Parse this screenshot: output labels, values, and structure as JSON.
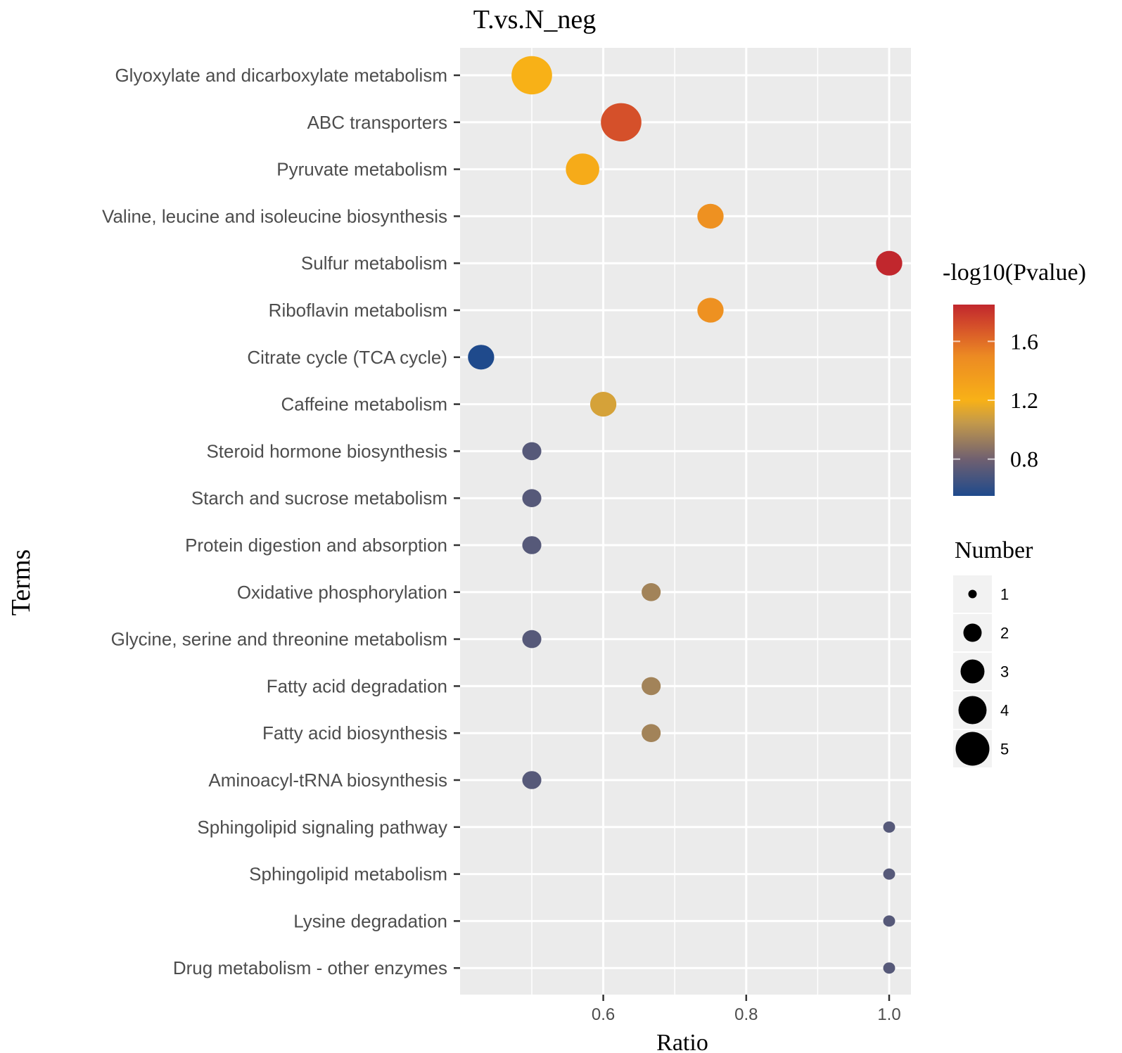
{
  "chart_data": {
    "type": "scatter",
    "title": "T.vs.N_neg",
    "xlabel": "Ratio",
    "ylabel": "Terms",
    "xlim": [
      0.42,
      1.03
    ],
    "xticks": [
      {
        "value": 0.6,
        "label": "0.6"
      },
      {
        "value": 0.8,
        "label": "0.8"
      },
      {
        "value": 1.0,
        "label": "1.0"
      }
    ],
    "x_minor_gridlines": [
      0.5,
      0.7,
      0.9
    ],
    "points": [
      {
        "term": "Glyoxylate and dicarboxylate metabolism",
        "ratio": 0.5,
        "number": 5,
        "neg_log10_p": 1.2
      },
      {
        "term": "ABC transporters",
        "ratio": 0.625,
        "number": 5,
        "neg_log10_p": 1.7
      },
      {
        "term": "Pyruvate metabolism",
        "ratio": 0.571,
        "number": 4,
        "neg_log10_p": 1.25
      },
      {
        "term": "Valine, leucine and isoleucine biosynthesis",
        "ratio": 0.75,
        "number": 3,
        "neg_log10_p": 1.45
      },
      {
        "term": "Sulfur metabolism",
        "ratio": 1.0,
        "number": 3,
        "neg_log10_p": 1.85
      },
      {
        "term": "Riboflavin metabolism",
        "ratio": 0.75,
        "number": 3,
        "neg_log10_p": 1.45
      },
      {
        "term": "Citrate cycle (TCA cycle)",
        "ratio": 0.429,
        "number": 3,
        "neg_log10_p": 0.55
      },
      {
        "term": "Caffeine metabolism",
        "ratio": 0.6,
        "number": 3,
        "neg_log10_p": 1.1
      },
      {
        "term": "Steroid hormone biosynthesis",
        "ratio": 0.5,
        "number": 2,
        "neg_log10_p": 0.72
      },
      {
        "term": "Starch and sucrose metabolism",
        "ratio": 0.5,
        "number": 2,
        "neg_log10_p": 0.72
      },
      {
        "term": "Protein digestion and absorption",
        "ratio": 0.5,
        "number": 2,
        "neg_log10_p": 0.72
      },
      {
        "term": "Oxidative phosphorylation",
        "ratio": 0.667,
        "number": 2,
        "neg_log10_p": 0.95
      },
      {
        "term": "Glycine, serine and threonine metabolism",
        "ratio": 0.5,
        "number": 2,
        "neg_log10_p": 0.72
      },
      {
        "term": "Fatty acid degradation",
        "ratio": 0.667,
        "number": 2,
        "neg_log10_p": 0.95
      },
      {
        "term": "Fatty acid biosynthesis",
        "ratio": 0.667,
        "number": 2,
        "neg_log10_p": 0.95
      },
      {
        "term": "Aminoacyl-tRNA biosynthesis",
        "ratio": 0.5,
        "number": 2,
        "neg_log10_p": 0.72
      },
      {
        "term": "Sphingolipid signaling pathway",
        "ratio": 1.0,
        "number": 1,
        "neg_log10_p": 0.72
      },
      {
        "term": "Sphingolipid metabolism",
        "ratio": 1.0,
        "number": 1,
        "neg_log10_p": 0.72
      },
      {
        "term": "Lysine degradation",
        "ratio": 1.0,
        "number": 1,
        "neg_log10_p": 0.72
      },
      {
        "term": "Drug metabolism - other enzymes",
        "ratio": 1.0,
        "number": 1,
        "neg_log10_p": 0.72
      }
    ],
    "color_legend": {
      "title": "-log10(Pvalue)",
      "range": [
        0.55,
        1.85
      ],
      "stops": [
        {
          "value": 0.55,
          "color": "#1f4a8c"
        },
        {
          "value": 0.8,
          "color": "#706070"
        },
        {
          "value": 1.05,
          "color": "#c49a4a"
        },
        {
          "value": 1.2,
          "color": "#f8b117"
        },
        {
          "value": 1.5,
          "color": "#ec8a23"
        },
        {
          "value": 1.7,
          "color": "#d5502a"
        },
        {
          "value": 1.85,
          "color": "#c1272d"
        }
      ],
      "ticks": [
        {
          "value": 0.8,
          "label": "0.8"
        },
        {
          "value": 1.2,
          "label": "1.2"
        },
        {
          "value": 1.6,
          "label": "1.6"
        }
      ]
    },
    "size_legend": {
      "title": "Number",
      "entries": [
        {
          "value": 1,
          "label": "1"
        },
        {
          "value": 2,
          "label": "2"
        },
        {
          "value": 3,
          "label": "3"
        },
        {
          "value": 4,
          "label": "4"
        },
        {
          "value": 5,
          "label": "5"
        }
      ]
    },
    "colors": {
      "panel_background": "#ebebeb",
      "gridline": "#ffffff",
      "axis_text": "#4d4d4d",
      "legend_key_background": "#f2f2f2"
    }
  }
}
